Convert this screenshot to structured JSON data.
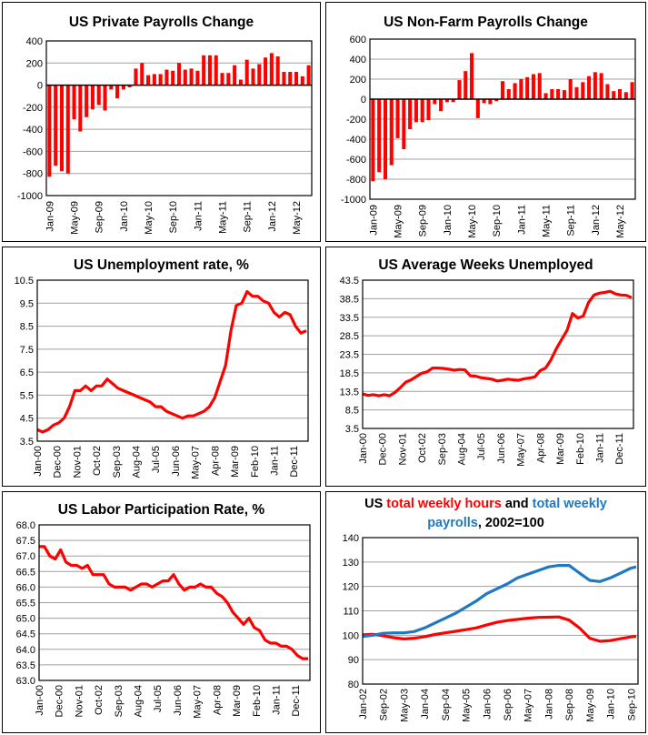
{
  "chart_data": [
    {
      "id": "private-payrolls",
      "type": "bar",
      "title": "US Private Payrolls Change",
      "xlabel": "",
      "ylabel": "",
      "ylim": [
        -1000,
        400
      ],
      "yticks": [
        -1000,
        -800,
        -600,
        -400,
        -200,
        0,
        200,
        400
      ],
      "ytick_labels": [
        "-1000",
        "-800",
        "-600",
        "-400",
        "-200",
        "0",
        "200",
        "400"
      ],
      "grid": true,
      "bar_color": "#ff0000",
      "xtick_labels": [
        "Jan-09",
        "May-09",
        "Sep-09",
        "Jan-10",
        "May-10",
        "Sep-10",
        "Jan-11",
        "May-11",
        "Sep-11",
        "Jan-12",
        "May-12"
      ],
      "xtick_every": 4,
      "categories": [
        "Jan-09",
        "Feb-09",
        "Mar-09",
        "Apr-09",
        "May-09",
        "Jun-09",
        "Jul-09",
        "Aug-09",
        "Sep-09",
        "Oct-09",
        "Nov-09",
        "Dec-09",
        "Jan-10",
        "Feb-10",
        "Mar-10",
        "Apr-10",
        "May-10",
        "Jun-10",
        "Jul-10",
        "Aug-10",
        "Sep-10",
        "Oct-10",
        "Nov-10",
        "Dec-10",
        "Jan-11",
        "Feb-11",
        "Mar-11",
        "Apr-11",
        "May-11",
        "Jun-11",
        "Jul-11",
        "Aug-11",
        "Sep-11",
        "Oct-11",
        "Nov-11",
        "Dec-11",
        "Jan-12",
        "Feb-12",
        "Mar-12",
        "Apr-12",
        "May-12",
        "Jun-12",
        "Jul-12"
      ],
      "values": [
        -830,
        -730,
        -780,
        -800,
        -310,
        -420,
        -290,
        -220,
        -180,
        -230,
        -40,
        -120,
        -40,
        -20,
        150,
        200,
        90,
        100,
        100,
        140,
        130,
        200,
        140,
        150,
        130,
        270,
        270,
        270,
        110,
        110,
        180,
        50,
        230,
        150,
        190,
        250,
        290,
        260,
        120,
        120,
        120,
        80,
        180
      ]
    },
    {
      "id": "nonfarm-payrolls",
      "type": "bar",
      "title": "US Non-Farm Payrolls Change",
      "xlabel": "",
      "ylabel": "",
      "ylim": [
        -1000,
        600
      ],
      "yticks": [
        -1000,
        -800,
        -600,
        -400,
        -200,
        0,
        200,
        400,
        600
      ],
      "ytick_labels": [
        "-1000",
        "-800",
        "-600",
        "-400",
        "-200",
        "0",
        "200",
        "400",
        "600"
      ],
      "grid": true,
      "bar_color": "#ff0000",
      "xtick_labels": [
        "Jan-09",
        "May-09",
        "Sep-09",
        "Jan-10",
        "May-10",
        "Sep-10",
        "Jan-11",
        "May-11",
        "Sep-11",
        "Jan-12",
        "May-12"
      ],
      "xtick_every": 4,
      "categories": [
        "Jan-09",
        "Feb-09",
        "Mar-09",
        "Apr-09",
        "May-09",
        "Jun-09",
        "Jul-09",
        "Aug-09",
        "Sep-09",
        "Oct-09",
        "Nov-09",
        "Dec-09",
        "Jan-10",
        "Feb-10",
        "Mar-10",
        "Apr-10",
        "May-10",
        "Jun-10",
        "Jul-10",
        "Aug-10",
        "Sep-10",
        "Oct-10",
        "Nov-10",
        "Dec-10",
        "Jan-11",
        "Feb-11",
        "Mar-11",
        "Apr-11",
        "May-11",
        "Jun-11",
        "Jul-11",
        "Aug-11",
        "Sep-11",
        "Oct-11",
        "Nov-11",
        "Dec-11",
        "Jan-12",
        "Feb-12",
        "Mar-12",
        "Apr-12",
        "May-12",
        "Jun-12",
        "Jul-12"
      ],
      "values": [
        -820,
        -730,
        -800,
        -660,
        -390,
        -500,
        -300,
        -230,
        -230,
        -210,
        -50,
        -120,
        -30,
        -30,
        190,
        280,
        460,
        -190,
        -40,
        -50,
        -20,
        180,
        100,
        160,
        200,
        220,
        250,
        260,
        60,
        100,
        100,
        90,
        200,
        120,
        170,
        230,
        270,
        260,
        150,
        80,
        100,
        70,
        170
      ]
    },
    {
      "id": "unemployment-rate",
      "type": "line",
      "title": "US Unemployment rate, %",
      "xlabel": "",
      "ylabel": "",
      "ylim": [
        3.5,
        10.5
      ],
      "yticks": [
        3.5,
        4.5,
        5.5,
        6.5,
        7.5,
        8.5,
        9.5,
        10.5
      ],
      "ytick_labels": [
        "3.5",
        "4.5",
        "5.5",
        "6.5",
        "7.5",
        "8.5",
        "9.5",
        "10.5"
      ],
      "grid": true,
      "line_color": "#ff0000",
      "x_range": [
        "Jan-00",
        "Jul-12"
      ],
      "xtick_labels": [
        "Jan-00",
        "Dec-00",
        "Nov-01",
        "Oct-02",
        "Sep-03",
        "Aug-04",
        "Jul-05",
        "Jun-06",
        "May-07",
        "Apr-08",
        "Mar-09",
        "Feb-10",
        "Jan-11",
        "Dec-11"
      ],
      "xtick_every_months": 11,
      "series": [
        {
          "name": "Unemployment rate",
          "color": "#ff0000",
          "x": [
            0,
            3,
            6,
            9,
            12,
            15,
            18,
            21,
            24,
            27,
            30,
            33,
            36,
            39,
            42,
            45,
            48,
            51,
            54,
            57,
            60,
            63,
            66,
            69,
            72,
            75,
            78,
            81,
            84,
            87,
            90,
            93,
            96,
            99,
            102,
            105,
            108,
            111,
            114,
            117,
            120,
            123,
            126,
            129,
            132,
            135,
            138,
            141,
            144,
            147,
            150
          ],
          "values": [
            4.0,
            3.9,
            4.0,
            4.2,
            4.3,
            4.5,
            5.0,
            5.7,
            5.7,
            5.9,
            5.7,
            5.9,
            5.9,
            6.2,
            6.0,
            5.8,
            5.7,
            5.6,
            5.5,
            5.4,
            5.3,
            5.2,
            5.0,
            5.0,
            4.8,
            4.7,
            4.6,
            4.5,
            4.6,
            4.6,
            4.7,
            4.8,
            5.0,
            5.4,
            6.1,
            6.8,
            8.3,
            9.4,
            9.5,
            10.0,
            9.8,
            9.8,
            9.6,
            9.5,
            9.1,
            8.9,
            9.1,
            9.0,
            8.5,
            8.2,
            8.3
          ]
        }
      ]
    },
    {
      "id": "avg-weeks-unemployed",
      "type": "line",
      "title": "US Average Weeks Unemployed",
      "xlabel": "",
      "ylabel": "",
      "ylim": [
        3.5,
        43.5
      ],
      "yticks": [
        3.5,
        8.5,
        13.5,
        18.5,
        23.5,
        28.5,
        33.5,
        38.5,
        43.5
      ],
      "ytick_labels": [
        "3.5",
        "8.5",
        "13.5",
        "18.5",
        "23.5",
        "28.5",
        "33.5",
        "38.5",
        "43.5"
      ],
      "grid": true,
      "line_color": "#ff0000",
      "x_range": [
        "Jan-00",
        "Jul-12"
      ],
      "xtick_labels": [
        "Jan-00",
        "Dec-00",
        "Nov-01",
        "Oct-02",
        "Sep-03",
        "Aug-04",
        "Jul-05",
        "Jun-06",
        "May-07",
        "Apr-08",
        "Mar-09",
        "Feb-10",
        "Jan-11",
        "Dec-11"
      ],
      "xtick_every_months": 11,
      "series": [
        {
          "name": "Average weeks unemployed",
          "color": "#ff0000",
          "x": [
            0,
            3,
            6,
            9,
            12,
            15,
            18,
            21,
            24,
            27,
            30,
            33,
            36,
            39,
            42,
            45,
            48,
            51,
            54,
            57,
            60,
            63,
            66,
            69,
            72,
            75,
            78,
            81,
            84,
            87,
            90,
            93,
            96,
            99,
            102,
            105,
            108,
            111,
            114,
            117,
            120,
            123,
            126,
            129,
            132,
            135,
            138,
            141,
            144,
            147,
            150
          ],
          "values": [
            12.8,
            12.4,
            12.6,
            12.3,
            12.6,
            12.3,
            13.2,
            14.5,
            16.0,
            16.6,
            17.5,
            18.4,
            18.8,
            19.8,
            19.8,
            19.7,
            19.5,
            19.2,
            19.4,
            19.3,
            17.7,
            17.6,
            17.2,
            17.0,
            16.8,
            16.3,
            16.5,
            16.8,
            16.6,
            16.5,
            16.9,
            17.1,
            17.4,
            19.1,
            19.8,
            22.0,
            25.0,
            27.5,
            30.0,
            34.5,
            33.3,
            33.8,
            37.5,
            39.5,
            40.0,
            40.2,
            40.5,
            39.8,
            39.5,
            39.4,
            38.8
          ]
        }
      ]
    },
    {
      "id": "labor-participation",
      "type": "line",
      "title": "US Labor Participation Rate, %",
      "xlabel": "",
      "ylabel": "",
      "ylim": [
        63.0,
        68.0
      ],
      "yticks": [
        63.0,
        63.5,
        64.0,
        64.5,
        65.0,
        65.5,
        66.0,
        66.5,
        67.0,
        67.5,
        68.0
      ],
      "ytick_labels": [
        "63.0",
        "63.5",
        "64.0",
        "64.5",
        "65.0",
        "65.5",
        "66.0",
        "66.5",
        "67.0",
        "67.5",
        "68.0"
      ],
      "grid": true,
      "line_color": "#ff0000",
      "x_range": [
        "Jan-00",
        "Jul-12"
      ],
      "xtick_labels": [
        "Jan-00",
        "Dec-00",
        "Nov-01",
        "Oct-02",
        "Sep-03",
        "Aug-04",
        "Jul-05",
        "Jun-06",
        "May-07",
        "Apr-08",
        "Mar-09",
        "Feb-10",
        "Jan-11",
        "Dec-11"
      ],
      "xtick_every_months": 11,
      "series": [
        {
          "name": "Labor participation rate",
          "color": "#ff0000",
          "x": [
            0,
            3,
            6,
            9,
            12,
            15,
            18,
            21,
            24,
            27,
            30,
            33,
            36,
            39,
            42,
            45,
            48,
            51,
            54,
            57,
            60,
            63,
            66,
            69,
            72,
            75,
            78,
            81,
            84,
            87,
            90,
            93,
            96,
            99,
            102,
            105,
            108,
            111,
            114,
            117,
            120,
            123,
            126,
            129,
            132,
            135,
            138,
            141,
            144,
            147,
            150
          ],
          "values": [
            67.3,
            67.3,
            67.0,
            66.9,
            67.2,
            66.8,
            66.7,
            66.7,
            66.6,
            66.7,
            66.4,
            66.4,
            66.4,
            66.1,
            66.0,
            66.0,
            66.0,
            65.9,
            66.0,
            66.1,
            66.1,
            66.0,
            66.1,
            66.2,
            66.2,
            66.4,
            66.1,
            65.9,
            66.0,
            66.0,
            66.1,
            66.0,
            66.0,
            65.8,
            65.7,
            65.5,
            65.2,
            65.0,
            64.8,
            65.0,
            64.7,
            64.6,
            64.3,
            64.2,
            64.2,
            64.1,
            64.1,
            64.0,
            63.8,
            63.7,
            63.7
          ]
        }
      ]
    },
    {
      "id": "weekly-hours-payrolls",
      "type": "line",
      "title": "US total weekly hours and total weekly payrolls, 2002=100",
      "title_parts": [
        {
          "text": "US ",
          "color": "#000000"
        },
        {
          "text": "total weekly hours",
          "color": "#ff0000"
        },
        {
          "text": " and ",
          "color": "#000000"
        },
        {
          "text": "total weekly",
          "color": "#1f78c1"
        },
        {
          "text": "payrolls",
          "color": "#1f78c1",
          "newline": true
        },
        {
          "text": ", 2002=100",
          "color": "#000000"
        }
      ],
      "xlabel": "",
      "ylabel": "",
      "ylim": [
        80,
        140
      ],
      "yticks": [
        80,
        90,
        100,
        110,
        120,
        130,
        140
      ],
      "ytick_labels": [
        "80",
        "90",
        "100",
        "110",
        "120",
        "130",
        "140"
      ],
      "grid": true,
      "x_range": [
        "Jan-02",
        "Dec-10"
      ],
      "xtick_labels": [
        "Jan-02",
        "Sep-02",
        "May-03",
        "Jan-04",
        "Sep-04",
        "May-05",
        "Jan-06",
        "Sep-06",
        "May-07",
        "Jan-08",
        "Sep-08",
        "May-09",
        "Jan-10",
        "Sep-10"
      ],
      "xtick_every_months": 8,
      "series": [
        {
          "name": "total weekly hours",
          "color": "#ff0000",
          "x": [
            0,
            4,
            8,
            12,
            16,
            20,
            24,
            28,
            32,
            36,
            40,
            44,
            48,
            52,
            56,
            60,
            64,
            68,
            72,
            76,
            80,
            84,
            88,
            92,
            96,
            100,
            104,
            106
          ],
          "values": [
            100.2,
            100.4,
            99.8,
            99.0,
            98.5,
            98.8,
            99.4,
            100.3,
            101.0,
            101.6,
            102.3,
            103.0,
            104.2,
            105.3,
            106.0,
            106.5,
            107.0,
            107.3,
            107.4,
            107.5,
            106.2,
            103.0,
            98.8,
            97.5,
            97.8,
            98.6,
            99.3,
            99.6
          ]
        },
        {
          "name": "total weekly payrolls",
          "color": "#1f78c1",
          "x": [
            0,
            4,
            8,
            12,
            16,
            20,
            24,
            28,
            32,
            36,
            40,
            44,
            48,
            52,
            56,
            60,
            64,
            68,
            72,
            76,
            80,
            84,
            88,
            92,
            96,
            100,
            104,
            106
          ],
          "values": [
            99.5,
            100.0,
            100.8,
            101.0,
            101.0,
            101.5,
            103.0,
            105.0,
            107.0,
            109.0,
            111.5,
            114.0,
            117.0,
            119.0,
            121.0,
            123.5,
            125.0,
            126.5,
            128.0,
            128.6,
            128.6,
            125.5,
            122.5,
            122.0,
            123.5,
            125.5,
            127.5,
            128.0
          ]
        }
      ]
    }
  ]
}
